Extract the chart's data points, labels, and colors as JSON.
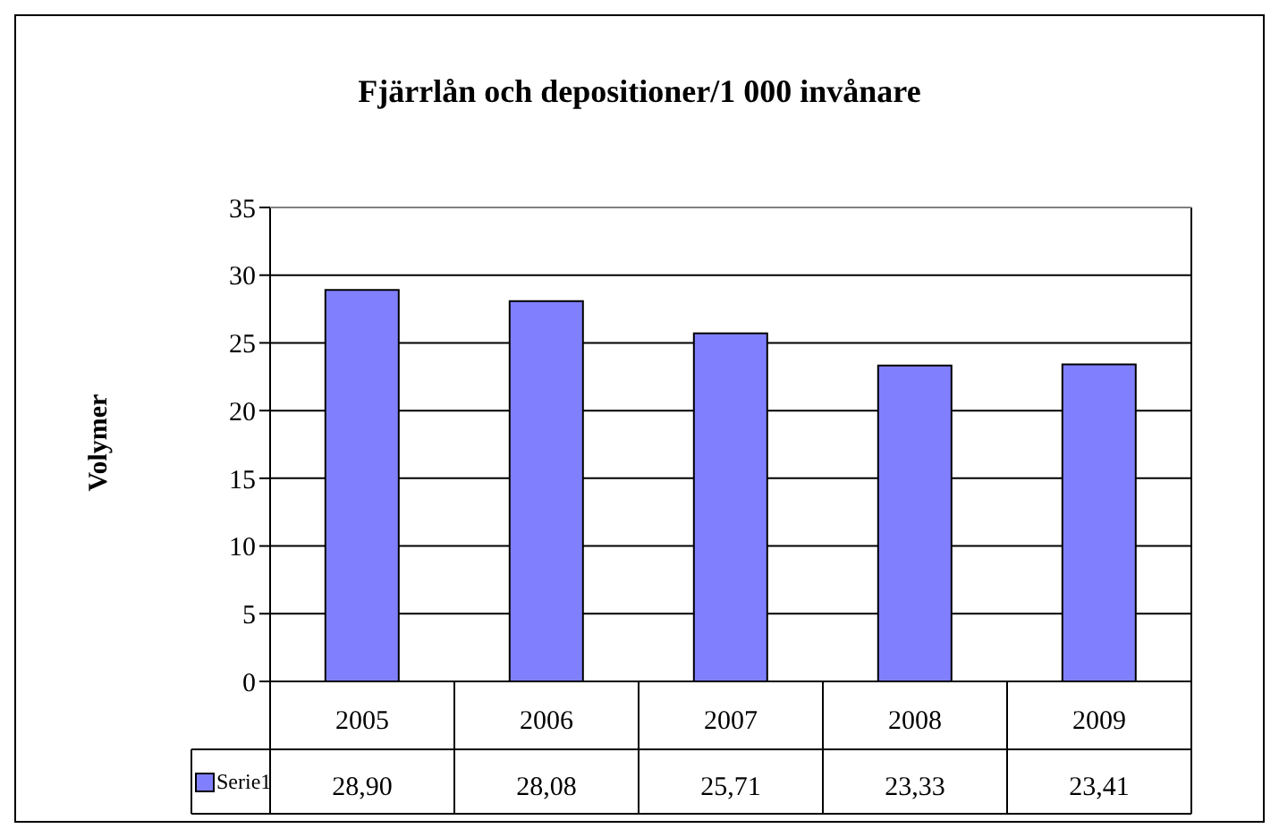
{
  "chart_data": {
    "type": "bar",
    "title": "Fjärrlån och depositioner/1 000 invånare",
    "ylabel": "Volymer",
    "categories": [
      "2005",
      "2006",
      "2007",
      "2008",
      "2009"
    ],
    "series": [
      {
        "name": "Serie1",
        "color": "#8080ff",
        "values": [
          28.9,
          28.08,
          25.71,
          23.33,
          23.41
        ],
        "value_labels": [
          "28,90",
          "28,08",
          "25,71",
          "23,33",
          "23,41"
        ]
      }
    ],
    "ylim": [
      0,
      35
    ],
    "yticks": [
      0,
      5,
      10,
      15,
      20,
      25,
      30,
      35
    ],
    "grid": "y",
    "legend": "bottom"
  }
}
